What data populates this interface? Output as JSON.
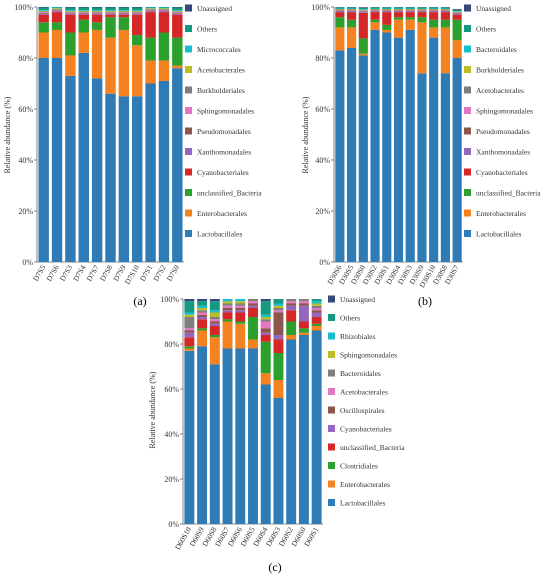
{
  "chart_data": [
    {
      "type": "bar",
      "stacked": true,
      "panel_label": "(a)",
      "ylabel": "Relative abundance (%)",
      "ylim": [
        0,
        100
      ],
      "yticks": [
        "0%",
        "20%",
        "40%",
        "60%",
        "80%",
        "100%"
      ],
      "categories": [
        "D7S5",
        "D7S6",
        "D7S3",
        "D7S4",
        "D7S7",
        "D7S8",
        "D7S9",
        "D7S10",
        "D7S1",
        "D7S2",
        "D7S0"
      ],
      "series": [
        {
          "name": "Lactobacillales",
          "color": "#2e7bb6",
          "values": [
            80,
            80,
            73,
            82,
            72,
            66,
            65,
            65,
            70,
            71,
            76
          ]
        },
        {
          "name": "Enterobacterales",
          "color": "#f58220",
          "values": [
            10,
            11,
            8,
            8,
            19,
            22,
            26,
            20,
            9,
            8,
            1
          ]
        },
        {
          "name": "unclassified_Bacteria",
          "color": "#2ca02c",
          "values": [
            4,
            3,
            9,
            5,
            3,
            8,
            5,
            4,
            9,
            11,
            11
          ]
        },
        {
          "name": "Cyanobacteriales",
          "color": "#d62728",
          "values": [
            3,
            4,
            7,
            2,
            3,
            1,
            1,
            8,
            10,
            8,
            9
          ]
        },
        {
          "name": "Xanthomonadales",
          "color": "#9467bd",
          "values": [
            0.3,
            0.3,
            0.3,
            0.3,
            0.3,
            0.3,
            0.3,
            0.3,
            0.3,
            0.3,
            0.3
          ]
        },
        {
          "name": "Pseudomonadales",
          "color": "#8c564b",
          "values": [
            0.3,
            0.3,
            0.3,
            0.3,
            0.3,
            0.3,
            0.3,
            0.3,
            0.3,
            0.3,
            0.3
          ]
        },
        {
          "name": "Sphingomonadales",
          "color": "#e377c2",
          "values": [
            0.3,
            0.3,
            0.3,
            0.3,
            0.3,
            0.3,
            0.3,
            0.3,
            0.3,
            0.3,
            0.3
          ]
        },
        {
          "name": "Burkholderiales",
          "color": "#7f7f7f",
          "values": [
            0.3,
            0.3,
            0.3,
            0.3,
            0.3,
            0.3,
            0.3,
            0.3,
            0.3,
            0.3,
            0.3
          ]
        },
        {
          "name": "Acetobacterales",
          "color": "#bcbd22",
          "values": [
            0.3,
            0.3,
            0.3,
            0.3,
            0.3,
            0.3,
            0.3,
            0.3,
            0.3,
            0.3,
            0.3
          ]
        },
        {
          "name": "Micrococcales",
          "color": "#17becf",
          "values": [
            0.3,
            0.3,
            0.3,
            0.3,
            0.3,
            0.3,
            0.3,
            0.3,
            0.3,
            0.3,
            0.3
          ]
        },
        {
          "name": "Others",
          "color": "#139a80",
          "values": [
            1,
            1,
            1,
            1,
            1,
            1,
            1,
            1,
            0.7,
            0.7,
            1
          ]
        },
        {
          "name": "Unassigned",
          "color": "#334a7a",
          "values": [
            0.3,
            0.3,
            0.3,
            0.3,
            0.3,
            0.3,
            0.3,
            0.3,
            0.3,
            0.3,
            0.3
          ]
        }
      ]
    },
    {
      "type": "bar",
      "stacked": true,
      "panel_label": "(b)",
      "ylabel": "Relative abundance (%)",
      "ylim": [
        0,
        100
      ],
      "yticks": [
        "0%",
        "20%",
        "40%",
        "60%",
        "80%",
        "100%"
      ],
      "categories": [
        "D30S6",
        "D30S5",
        "D30S0",
        "D30S2",
        "D30S1",
        "D30S4",
        "D30S3",
        "D30S9",
        "D30S10",
        "D30S8",
        "D30S7"
      ],
      "series": [
        {
          "name": "Lactobacillales",
          "color": "#2e7bb6",
          "values": [
            83,
            84,
            81,
            91,
            90,
            88,
            91,
            74,
            88,
            74,
            80
          ]
        },
        {
          "name": "Enterobacterales",
          "color": "#f58220",
          "values": [
            9,
            8,
            0.7,
            3,
            1,
            7,
            4,
            20,
            4,
            18,
            7
          ]
        },
        {
          "name": "unclassified_Bacteria",
          "color": "#2ca02c",
          "values": [
            4,
            3,
            6,
            1,
            2,
            1,
            1,
            2,
            3,
            3,
            8
          ]
        },
        {
          "name": "Cyanobacteriales",
          "color": "#d62728",
          "values": [
            2,
            3,
            10,
            3,
            5,
            2,
            2,
            2,
            3,
            3,
            2
          ]
        },
        {
          "name": "Xanthomonadales",
          "color": "#9467bd",
          "values": [
            0.3,
            0.3,
            0.3,
            0.3,
            0.3,
            0.3,
            0.3,
            0.3,
            0.3,
            0.3,
            0.3
          ]
        },
        {
          "name": "Pseudomonadales",
          "color": "#8c564b",
          "values": [
            0.3,
            0.3,
            0.3,
            0.3,
            0.3,
            0.3,
            0.3,
            0.3,
            0.3,
            0.3,
            0.3
          ]
        },
        {
          "name": "Sphingomonadales",
          "color": "#e377c2",
          "values": [
            0.2,
            0.2,
            0.2,
            0.2,
            0.2,
            0.2,
            0.2,
            0.2,
            0.2,
            0.2,
            0.2
          ]
        },
        {
          "name": "Acetobacterales",
          "color": "#7f7f7f",
          "values": [
            0.2,
            0.2,
            0.2,
            0.2,
            0.2,
            0.2,
            0.2,
            0.2,
            0.2,
            0.2,
            0.2
          ]
        },
        {
          "name": "Burkholderiales",
          "color": "#bcbd22",
          "values": [
            0.2,
            0.2,
            0.2,
            0.2,
            0.2,
            0.2,
            0.2,
            0.2,
            0.2,
            0.2,
            0.2
          ]
        },
        {
          "name": "Bacteroidales",
          "color": "#17becf",
          "values": [
            0.2,
            0.2,
            0.2,
            0.2,
            0.2,
            0.2,
            0.2,
            0.2,
            0.2,
            0.2,
            0.2
          ]
        },
        {
          "name": "Others",
          "color": "#139a80",
          "values": [
            0.5,
            0.5,
            0.5,
            0.5,
            0.5,
            0.5,
            0.5,
            0.5,
            0.5,
            0.5,
            0.5
          ]
        },
        {
          "name": "Unassigned",
          "color": "#334a7a",
          "values": [
            0.3,
            0.3,
            0.3,
            0.3,
            0.3,
            0.3,
            0.3,
            0.3,
            0.3,
            0.3,
            0.3
          ]
        }
      ]
    },
    {
      "type": "bar",
      "stacked": true,
      "panel_label": "(c)",
      "ylabel": "Relative abundance (%)",
      "ylim": [
        0,
        100
      ],
      "yticks": [
        "0%",
        "20%",
        "40%",
        "60%",
        "80%",
        "100%"
      ],
      "categories": [
        "D60S10",
        "D60S9",
        "D60S8",
        "D60S7",
        "D60S6",
        "D60S5",
        "D60S4",
        "D60S3",
        "D60S2",
        "D60S0",
        "D60S1"
      ],
      "series": [
        {
          "name": "Lactobacillales",
          "color": "#2e7bb6",
          "values": [
            77,
            79,
            71,
            78,
            78,
            78,
            62,
            56,
            82,
            84,
            86
          ]
        },
        {
          "name": "Enterobacterales",
          "color": "#f58220",
          "values": [
            1,
            7,
            12,
            12,
            11,
            4,
            5,
            8,
            2,
            1,
            2
          ]
        },
        {
          "name": "Clostridiales",
          "color": "#2ca02c",
          "values": [
            1,
            1,
            1,
            1,
            1,
            10,
            14,
            12,
            6,
            2,
            1
          ]
        },
        {
          "name": "unclassified_Bacteria",
          "color": "#d62728",
          "values": [
            4,
            4,
            4,
            3,
            4,
            4,
            3,
            6,
            5,
            3,
            3
          ]
        },
        {
          "name": "Cyanobacteriales",
          "color": "#9467bd",
          "values": [
            2,
            1,
            1,
            1,
            1,
            1,
            1,
            2,
            2,
            7,
            2
          ]
        },
        {
          "name": "Oscillospirales",
          "color": "#8c564b",
          "values": [
            1,
            1,
            1,
            1,
            1,
            1,
            2,
            10,
            1,
            1,
            1
          ]
        },
        {
          "name": "Acetobacterales",
          "color": "#e377c2",
          "values": [
            1,
            1,
            1,
            1,
            1,
            1,
            3,
            1,
            1,
            1,
            1
          ]
        },
        {
          "name": "Bacteroidales",
          "color": "#7f7f7f",
          "values": [
            5,
            1,
            1,
            1,
            1,
            1,
            1,
            1,
            1,
            1,
            1
          ]
        },
        {
          "name": "Sphingomonadales",
          "color": "#bcbd22",
          "values": [
            1,
            1,
            2,
            1,
            1,
            1,
            1,
            1,
            1,
            1,
            1
          ]
        },
        {
          "name": "Rhizobiales",
          "color": "#17becf",
          "values": [
            1,
            1,
            1,
            1,
            1,
            1,
            1,
            1,
            1,
            1,
            1
          ]
        },
        {
          "name": "Others",
          "color": "#139a80",
          "values": [
            5,
            2,
            4,
            1,
            1,
            2,
            6,
            2,
            1,
            1,
            1
          ]
        },
        {
          "name": "Unassigned",
          "color": "#334a7a",
          "values": [
            1,
            1,
            1,
            0,
            0,
            0,
            1,
            0,
            1,
            1,
            0
          ]
        }
      ]
    }
  ]
}
